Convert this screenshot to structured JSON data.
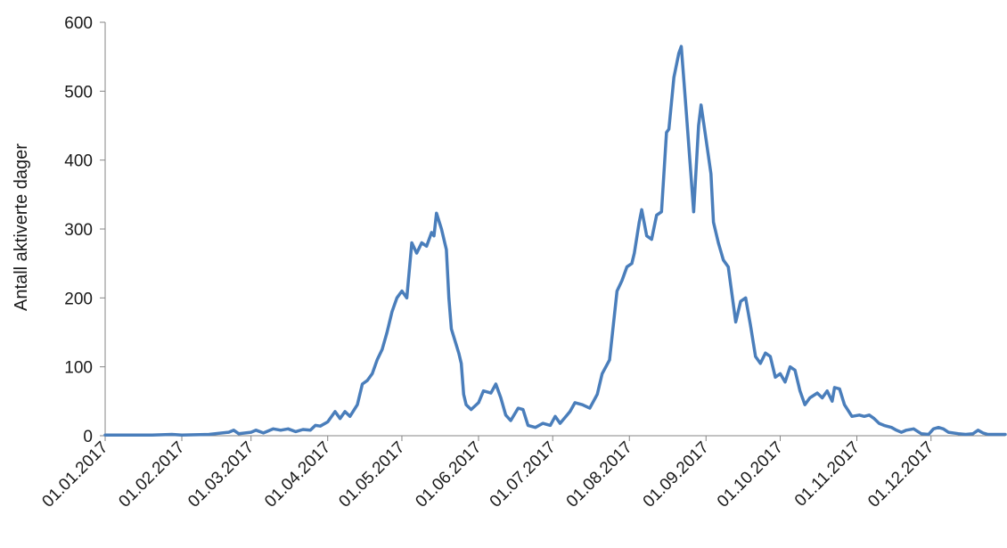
{
  "chart_data": {
    "type": "line",
    "title": "",
    "xlabel": "",
    "ylabel": "Antall aktiverte dager",
    "ylim": [
      0,
      600
    ],
    "yticks": [
      0,
      100,
      200,
      300,
      400,
      500,
      600
    ],
    "xlim": [
      "2017-01-01",
      "2017-12-31"
    ],
    "xtick_labels": [
      "01.01.2017",
      "01.02.2017",
      "01.03.2017",
      "01.04.2017",
      "01.05.2017",
      "01.06.2017",
      "01.07.2017",
      "01.08.2017",
      "01.09.2017",
      "01.10.2017",
      "01.11.2017",
      "01.12.2017"
    ],
    "xtick_dates": [
      "2017-01-01",
      "2017-02-01",
      "2017-03-01",
      "2017-04-01",
      "2017-05-01",
      "2017-06-01",
      "2017-07-01",
      "2017-08-01",
      "2017-09-01",
      "2017-10-01",
      "2017-11-01",
      "2017-12-01"
    ],
    "grid": false,
    "legend": "none",
    "series": [
      {
        "color": "#4a7ebb",
        "points": [
          [
            "2017-01-01",
            1
          ],
          [
            "2017-01-20",
            1
          ],
          [
            "2017-01-28",
            2
          ],
          [
            "2017-02-01",
            1
          ],
          [
            "2017-02-12",
            2
          ],
          [
            "2017-02-20",
            5
          ],
          [
            "2017-02-22",
            8
          ],
          [
            "2017-02-24",
            3
          ],
          [
            "2017-03-01",
            5
          ],
          [
            "2017-03-03",
            8
          ],
          [
            "2017-03-06",
            4
          ],
          [
            "2017-03-10",
            10
          ],
          [
            "2017-03-13",
            8
          ],
          [
            "2017-03-16",
            10
          ],
          [
            "2017-03-19",
            6
          ],
          [
            "2017-03-22",
            9
          ],
          [
            "2017-03-25",
            8
          ],
          [
            "2017-03-27",
            15
          ],
          [
            "2017-03-29",
            14
          ],
          [
            "2017-04-01",
            20
          ],
          [
            "2017-04-04",
            35
          ],
          [
            "2017-04-06",
            25
          ],
          [
            "2017-04-08",
            35
          ],
          [
            "2017-04-10",
            28
          ],
          [
            "2017-04-13",
            45
          ],
          [
            "2017-04-15",
            75
          ],
          [
            "2017-04-17",
            80
          ],
          [
            "2017-04-19",
            90
          ],
          [
            "2017-04-21",
            110
          ],
          [
            "2017-04-23",
            125
          ],
          [
            "2017-04-25",
            150
          ],
          [
            "2017-04-27",
            180
          ],
          [
            "2017-04-29",
            200
          ],
          [
            "2017-05-01",
            210
          ],
          [
            "2017-05-03",
            200
          ],
          [
            "2017-05-05",
            280
          ],
          [
            "2017-05-07",
            265
          ],
          [
            "2017-05-09",
            280
          ],
          [
            "2017-05-11",
            275
          ],
          [
            "2017-05-13",
            295
          ],
          [
            "2017-05-14",
            290
          ],
          [
            "2017-05-15",
            323
          ],
          [
            "2017-05-17",
            300
          ],
          [
            "2017-05-19",
            270
          ],
          [
            "2017-05-20",
            200
          ],
          [
            "2017-05-21",
            155
          ],
          [
            "2017-05-24",
            120
          ],
          [
            "2017-05-25",
            105
          ],
          [
            "2017-05-26",
            60
          ],
          [
            "2017-05-27",
            45
          ],
          [
            "2017-05-29",
            38
          ],
          [
            "2017-06-01",
            48
          ],
          [
            "2017-06-03",
            65
          ],
          [
            "2017-06-06",
            62
          ],
          [
            "2017-06-08",
            75
          ],
          [
            "2017-06-10",
            55
          ],
          [
            "2017-06-12",
            30
          ],
          [
            "2017-06-14",
            22
          ],
          [
            "2017-06-17",
            40
          ],
          [
            "2017-06-19",
            38
          ],
          [
            "2017-06-21",
            15
          ],
          [
            "2017-06-24",
            12
          ],
          [
            "2017-06-27",
            18
          ],
          [
            "2017-06-30",
            15
          ],
          [
            "2017-07-02",
            28
          ],
          [
            "2017-07-04",
            18
          ],
          [
            "2017-07-08",
            35
          ],
          [
            "2017-07-10",
            48
          ],
          [
            "2017-07-13",
            45
          ],
          [
            "2017-07-16",
            40
          ],
          [
            "2017-07-19",
            60
          ],
          [
            "2017-07-21",
            90
          ],
          [
            "2017-07-24",
            110
          ],
          [
            "2017-07-27",
            210
          ],
          [
            "2017-07-29",
            225
          ],
          [
            "2017-07-31",
            245
          ],
          [
            "2017-08-02",
            250
          ],
          [
            "2017-08-03",
            265
          ],
          [
            "2017-08-05",
            310
          ],
          [
            "2017-08-06",
            328
          ],
          [
            "2017-08-08",
            290
          ],
          [
            "2017-08-10",
            285
          ],
          [
            "2017-08-12",
            320
          ],
          [
            "2017-08-14",
            325
          ],
          [
            "2017-08-16",
            440
          ],
          [
            "2017-08-17",
            445
          ],
          [
            "2017-08-19",
            520
          ],
          [
            "2017-08-21",
            555
          ],
          [
            "2017-08-22",
            565
          ],
          [
            "2017-08-24",
            470
          ],
          [
            "2017-08-27",
            325
          ],
          [
            "2017-08-29",
            450
          ],
          [
            "2017-08-30",
            480
          ],
          [
            "2017-09-01",
            430
          ],
          [
            "2017-09-03",
            380
          ],
          [
            "2017-09-04",
            310
          ],
          [
            "2017-09-06",
            280
          ],
          [
            "2017-09-08",
            255
          ],
          [
            "2017-09-10",
            245
          ],
          [
            "2017-09-13",
            165
          ],
          [
            "2017-09-15",
            195
          ],
          [
            "2017-09-17",
            200
          ],
          [
            "2017-09-19",
            160
          ],
          [
            "2017-09-21",
            115
          ],
          [
            "2017-09-23",
            105
          ],
          [
            "2017-09-25",
            120
          ],
          [
            "2017-09-27",
            115
          ],
          [
            "2017-09-29",
            85
          ],
          [
            "2017-10-01",
            90
          ],
          [
            "2017-10-03",
            78
          ],
          [
            "2017-10-05",
            100
          ],
          [
            "2017-10-07",
            95
          ],
          [
            "2017-10-09",
            65
          ],
          [
            "2017-10-11",
            45
          ],
          [
            "2017-10-13",
            55
          ],
          [
            "2017-10-16",
            62
          ],
          [
            "2017-10-18",
            55
          ],
          [
            "2017-10-20",
            65
          ],
          [
            "2017-10-22",
            50
          ],
          [
            "2017-10-23",
            70
          ],
          [
            "2017-10-25",
            68
          ],
          [
            "2017-10-27",
            45
          ],
          [
            "2017-10-30",
            28
          ],
          [
            "2017-11-02",
            30
          ],
          [
            "2017-11-04",
            28
          ],
          [
            "2017-11-06",
            30
          ],
          [
            "2017-11-08",
            25
          ],
          [
            "2017-11-10",
            18
          ],
          [
            "2017-11-12",
            15
          ],
          [
            "2017-11-15",
            12
          ],
          [
            "2017-11-17",
            8
          ],
          [
            "2017-11-19",
            5
          ],
          [
            "2017-11-21",
            8
          ],
          [
            "2017-11-24",
            10
          ],
          [
            "2017-11-27",
            3
          ],
          [
            "2017-11-30",
            2
          ],
          [
            "2017-12-02",
            10
          ],
          [
            "2017-12-04",
            12
          ],
          [
            "2017-12-06",
            10
          ],
          [
            "2017-12-08",
            5
          ],
          [
            "2017-12-12",
            3
          ],
          [
            "2017-12-15",
            2
          ],
          [
            "2017-12-18",
            3
          ],
          [
            "2017-12-20",
            8
          ],
          [
            "2017-12-22",
            4
          ],
          [
            "2017-12-24",
            2
          ],
          [
            "2017-12-31",
            2
          ]
        ]
      }
    ]
  }
}
